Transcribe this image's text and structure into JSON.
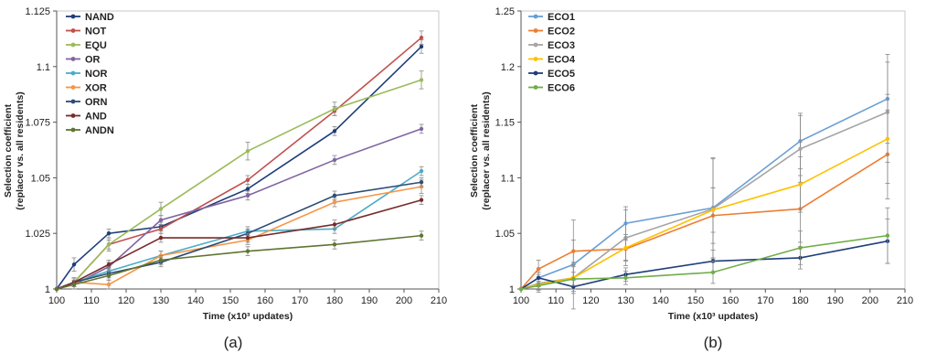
{
  "chart_data": [
    {
      "type": "line",
      "panel_label": "(a)",
      "xlabel": "Time (x10³ updates)",
      "ylabel_line1": "Selection coefficient",
      "ylabel_line2": "(replacer vs. all residents)",
      "xlim": [
        100,
        210
      ],
      "ylim": [
        1,
        1.125
      ],
      "x_ticks": [
        100,
        110,
        120,
        130,
        140,
        150,
        160,
        170,
        180,
        190,
        200,
        210
      ],
      "y_ticks": [
        1,
        1.025,
        1.05,
        1.075,
        1.1,
        1.125
      ],
      "y_tick_labels": [
        "1",
        "1.025",
        "1.05",
        "1.075",
        "1.1",
        "1.125"
      ],
      "x": [
        100,
        105,
        115,
        130,
        155,
        180,
        205
      ],
      "legend_position": "top-left",
      "series": [
        {
          "name": "NAND",
          "color": "#1f3e7a",
          "values": [
            1.0,
            1.011,
            1.025,
            1.028,
            1.045,
            1.071,
            1.109
          ],
          "err": [
            0,
            0.003,
            0.002,
            0.002,
            0.002,
            0.002,
            0.003
          ]
        },
        {
          "name": "NOT",
          "color": "#c0504d",
          "values": [
            1.0,
            1.003,
            1.02,
            1.027,
            1.049,
            1.08,
            1.113
          ],
          "err": [
            0,
            0.002,
            0.002,
            0.002,
            0.002,
            0.002,
            0.003
          ]
        },
        {
          "name": "EQU",
          "color": "#9bbb59",
          "values": [
            1.0,
            1.003,
            1.02,
            1.036,
            1.062,
            1.081,
            1.094
          ],
          "err": [
            0,
            0.002,
            0.003,
            0.003,
            0.004,
            0.003,
            0.004
          ]
        },
        {
          "name": "OR",
          "color": "#8064a2",
          "values": [
            1.0,
            1.002,
            1.01,
            1.031,
            1.042,
            1.058,
            1.072
          ],
          "err": [
            0,
            0.002,
            0.002,
            0.002,
            0.002,
            0.002,
            0.002
          ]
        },
        {
          "name": "NOR",
          "color": "#4bacc6",
          "values": [
            1.0,
            1.003,
            1.008,
            1.015,
            1.026,
            1.027,
            1.053
          ],
          "err": [
            0,
            0.002,
            0.002,
            0.002,
            0.002,
            0.002,
            0.002
          ]
        },
        {
          "name": "XOR",
          "color": "#f79646",
          "values": [
            1.0,
            1.003,
            1.002,
            1.015,
            1.022,
            1.039,
            1.046
          ],
          "err": [
            0,
            0.002,
            0.002,
            0.002,
            0.002,
            0.002,
            0.003
          ]
        },
        {
          "name": "ORN",
          "color": "#2c4d75",
          "values": [
            1.0,
            1.003,
            1.007,
            1.012,
            1.025,
            1.042,
            1.048
          ],
          "err": [
            0,
            0.002,
            0.002,
            0.002,
            0.002,
            0.002,
            0.002
          ]
        },
        {
          "name": "AND",
          "color": "#772c2a",
          "values": [
            1.0,
            1.003,
            1.011,
            1.023,
            1.023,
            1.029,
            1.04
          ],
          "err": [
            0,
            0.002,
            0.002,
            0.002,
            0.002,
            0.002,
            0.002
          ]
        },
        {
          "name": "ANDN",
          "color": "#5f7530",
          "values": [
            1.0,
            1.002,
            1.006,
            1.013,
            1.017,
            1.02,
            1.024
          ],
          "err": [
            0,
            0.002,
            0.002,
            0.002,
            0.002,
            0.002,
            0.002
          ]
        }
      ]
    },
    {
      "type": "line",
      "panel_label": "(b)",
      "xlabel": "Time (x10³ updates)",
      "ylabel_line1": "Selection coefficient",
      "ylabel_line2": "(replacer vs. all residents)",
      "xlim": [
        100,
        210
      ],
      "ylim": [
        1,
        1.25
      ],
      "x_ticks": [
        100,
        110,
        120,
        130,
        140,
        150,
        160,
        170,
        180,
        190,
        200,
        210
      ],
      "y_ticks": [
        1,
        1.05,
        1.1,
        1.15,
        1.2,
        1.25
      ],
      "y_tick_labels": [
        "1",
        "1.05",
        "1.1",
        "1.15",
        "1.2",
        "1.25"
      ],
      "x": [
        100,
        105,
        115,
        130,
        155,
        180,
        205
      ],
      "legend_position": "top-left",
      "series": [
        {
          "name": "ECO1",
          "color": "#6a9fd4",
          "values": [
            1.0,
            1.01,
            1.022,
            1.059,
            1.073,
            1.133,
            1.171
          ],
          "err": [
            0,
            0.008,
            0.04,
            0.015,
            0.045,
            0.025,
            0.04
          ]
        },
        {
          "name": "ECO2",
          "color": "#ed7d31",
          "values": [
            1.0,
            1.018,
            1.034,
            1.036,
            1.066,
            1.072,
            1.121
          ],
          "err": [
            0,
            0.008,
            0.01,
            0.01,
            0.025,
            0.03,
            0.04
          ]
        },
        {
          "name": "ECO3",
          "color": "#a5a5a5",
          "values": [
            1.0,
            1.005,
            1.01,
            1.046,
            1.072,
            1.126,
            1.159
          ],
          "err": [
            0,
            0.008,
            0.012,
            0.025,
            0.045,
            0.03,
            0.045
          ]
        },
        {
          "name": "ECO4",
          "color": "#ffc000",
          "values": [
            1.0,
            1.004,
            1.01,
            1.037,
            1.071,
            1.094,
            1.135
          ],
          "err": [
            0,
            0.005,
            0.01,
            0.012,
            0.02,
            0.025,
            0.04
          ]
        },
        {
          "name": "ECO5",
          "color": "#1f3e7a",
          "values": [
            1.0,
            1.01,
            1.002,
            1.013,
            1.025,
            1.028,
            1.043
          ],
          "err": [
            0,
            0.005,
            0.006,
            0.006,
            0.01,
            0.01,
            0.02
          ]
        },
        {
          "name": "ECO6",
          "color": "#70ad47",
          "values": [
            1.0,
            1.003,
            1.009,
            1.01,
            1.015,
            1.037,
            1.048
          ],
          "err": [
            0,
            0.004,
            0.006,
            0.006,
            0.01,
            0.015,
            0.025
          ]
        }
      ]
    }
  ]
}
